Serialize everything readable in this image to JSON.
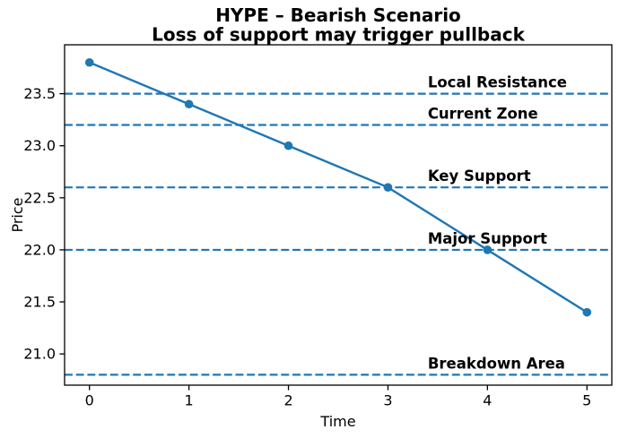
{
  "chart_data": {
    "type": "line",
    "title": "HYPE – Bearish Scenario",
    "subtitle": "Loss of support may trigger pullback",
    "xlabel": "Time",
    "ylabel": "Price",
    "x": [
      0,
      1,
      2,
      3,
      4,
      5
    ],
    "y": [
      23.8,
      23.4,
      23.0,
      22.6,
      22.0,
      21.4
    ],
    "xlim": [
      -0.25,
      5.25
    ],
    "ylim": [
      20.7,
      23.97
    ],
    "xticks": [
      0,
      1,
      2,
      3,
      4,
      5
    ],
    "xtick_labels": [
      "0",
      "1",
      "2",
      "3",
      "4",
      "5"
    ],
    "yticks": [
      21.0,
      21.5,
      22.0,
      22.5,
      23.0,
      23.5
    ],
    "ytick_labels": [
      "21.0",
      "21.5",
      "22.0",
      "22.5",
      "23.0",
      "23.5"
    ],
    "grid": false,
    "legend": "none",
    "line_color": "#1f77b4",
    "marker": "circle",
    "hline_color": "#1f77b4",
    "hline_style": "dashed",
    "annotation_color": "#000000",
    "annotation_x": 3.4,
    "hlines": [
      {
        "label": "Local Resistance",
        "y": 23.5
      },
      {
        "label": "Current Zone",
        "y": 23.2
      },
      {
        "label": "Key Support",
        "y": 22.6
      },
      {
        "label": "Major Support",
        "y": 22.0
      },
      {
        "label": "Breakdown Area",
        "y": 20.8
      }
    ]
  }
}
